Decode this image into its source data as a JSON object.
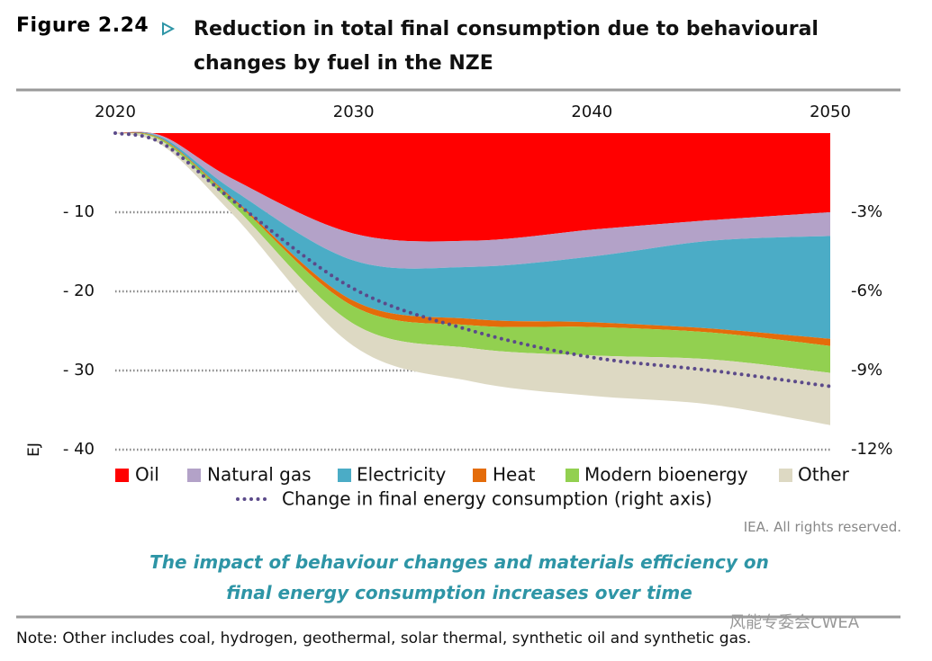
{
  "chart_data": {
    "type": "stacked_area",
    "figure_label": "Figure 2.24",
    "title": "Reduction in total final consumption due to behavioural changes by fuel in the NZE",
    "y_label": "EJ",
    "x": [
      2020,
      2022,
      2025,
      2030,
      2035,
      2040,
      2045,
      2050
    ],
    "xlim": [
      2020,
      2050
    ],
    "xticks": [
      2020,
      2030,
      2040,
      2050
    ],
    "ylim": [
      -40,
      0
    ],
    "yticks": [
      {
        "value": -10,
        "label": "- 10"
      },
      {
        "value": -20,
        "label": "- 20"
      },
      {
        "value": -30,
        "label": "- 30"
      },
      {
        "value": -40,
        "label": "- 40"
      }
    ],
    "y2lim": [
      -12,
      0
    ],
    "y2ticks": [
      {
        "value": -3,
        "label": "-3%"
      },
      {
        "value": -6,
        "label": "-6%"
      },
      {
        "value": -9,
        "label": "-9%"
      },
      {
        "value": -12,
        "label": "-12%"
      }
    ],
    "grid": true,
    "series": [
      {
        "name": "Oil",
        "color": "#ff0000",
        "values": [
          0,
          -0.4,
          -5.9,
          -12.7,
          -13.6,
          -12.2,
          -11.0,
          -10.0
        ]
      },
      {
        "name": "Natural gas",
        "color": "#b3a2c8",
        "values": [
          0,
          -0.2,
          -1.4,
          -3.4,
          -3.3,
          -3.4,
          -2.6,
          -3.0
        ]
      },
      {
        "name": "Electricity",
        "color": "#4bacc6",
        "values": [
          0,
          -0.2,
          -1.1,
          -5.1,
          -6.6,
          -8.3,
          -11.1,
          -13.0
        ]
      },
      {
        "name": "Heat",
        "color": "#e46c0a",
        "values": [
          0,
          -0.1,
          -0.2,
          -0.7,
          -0.8,
          -0.6,
          -0.5,
          -0.9
        ]
      },
      {
        "name": "Modern bioenergy",
        "color": "#92d050",
        "values": [
          0,
          -0.2,
          -0.7,
          -2.2,
          -2.9,
          -3.6,
          -3.4,
          -3.4
        ]
      },
      {
        "name": "Other",
        "color": "#ddd9c3",
        "values": [
          0,
          -0.5,
          -1.2,
          -2.8,
          -4.2,
          -5.1,
          -5.7,
          -6.6
        ]
      },
      {
        "name": "Change in final energy consumption (right axis)",
        "type": "line",
        "axis": "y2",
        "color": "#5b4a8a",
        "values": [
          0,
          -0.4,
          -2.6,
          -5.9,
          -7.5,
          -8.5,
          -9.0,
          -9.6
        ]
      }
    ]
  },
  "source": "IEA. All rights reserved.",
  "caption": "The impact of behaviour changes and materials efficiency on final energy consumption increases over time",
  "note": "Note: Other includes coal, hydrogen, geothermal, solar thermal, synthetic oil and synthetic gas.",
  "watermark": "风能专委会CWEA"
}
